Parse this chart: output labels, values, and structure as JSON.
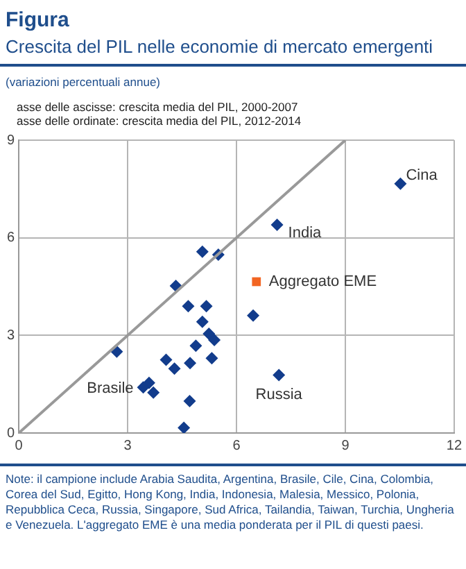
{
  "chart_data": {
    "type": "scatter",
    "title": "Figura",
    "subtitle": "Crescita del PIL nelle economie di mercato emergenti",
    "xlabel": "asse delle ascisse: crescita media del PIL, 2000-2007",
    "ylabel": "asse delle ordinate: crescita media del PIL, 2012-2014",
    "annotations": [
      "(variazioni percentuali annue)",
      {
        "text": "Cina",
        "x": 10.52,
        "y": 7.66
      },
      {
        "text": "India",
        "x": 7.12,
        "y": 6.4
      },
      {
        "text": "Russia",
        "x": 7.17,
        "y": 1.78
      },
      {
        "text": "Brasile",
        "x": 3.43,
        "y": 1.4
      },
      "Note: il campione include Arabia Saudita, Argentina, Brasile, Cile, Cina, Colombia, Corea del Sud, Egitto, Hong Kong, India, Indonesia, Malesia, Messico, Polonia, Repubblica Ceca, Russia, Singapore, Sud Africa, Tailandia, Taiwan, Turchia, Ungheria e Venezuela. L'aggregato EME è una media ponderata per il PIL di questi paesi."
    ],
    "xlim": [
      0,
      12
    ],
    "ylim": [
      0,
      9
    ],
    "xticks": [
      0,
      3,
      6,
      9,
      12
    ],
    "yticks": [
      0,
      3,
      6,
      9
    ],
    "grid": true,
    "legend": false,
    "series": [
      {
        "type": "line",
        "color": "#999999",
        "x": [
          0,
          9
        ],
        "values": [
          0,
          9
        ],
        "marker": "none",
        "line_style": "solid"
      },
      {
        "color": "#123c8c",
        "marker": "diamond",
        "x": [
          10.52,
          7.12,
          5.06,
          5.5,
          4.33,
          4.67,
          5.17,
          5.06,
          6.46,
          5.24,
          5.39,
          4.88,
          5.32,
          4.72,
          4.06,
          4.29,
          2.7,
          3.59,
          3.43,
          3.71,
          4.71,
          4.55,
          7.17
        ],
        "values": [
          7.66,
          6.4,
          5.57,
          5.48,
          4.52,
          3.9,
          3.9,
          3.42,
          3.61,
          3.05,
          2.86,
          2.68,
          2.3,
          2.15,
          2.25,
          1.98,
          2.5,
          1.54,
          1.4,
          1.24,
          0.98,
          0.16,
          1.78
        ]
      },
      {
        "name": "Aggregato EME",
        "color": "#f26522",
        "marker": "square",
        "x": [
          6.55
        ],
        "values": [
          4.65
        ]
      }
    ]
  }
}
